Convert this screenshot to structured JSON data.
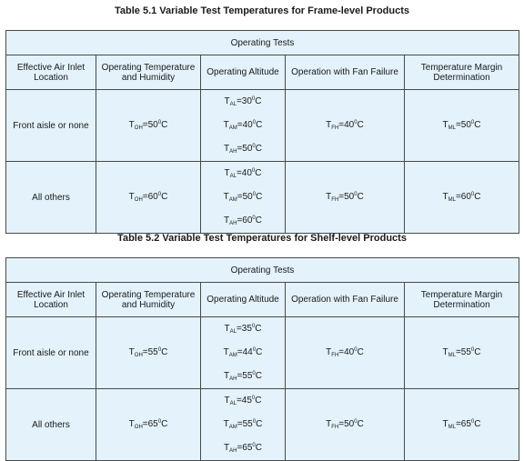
{
  "tables": [
    {
      "caption": "Table 5.1 Variable Test Temperatures for Frame-level Products",
      "group_header": "Operating Tests",
      "columns": [
        "Effective Air Inlet Location",
        "Operating Temperature and Humidity",
        "Operating Altitude",
        "Operation with Fan Failure",
        "Temperature Margin Determination"
      ],
      "rows": [
        {
          "location": "Front aisle or none",
          "oh": {
            "sym": "T",
            "sub": "OH",
            "val": "=50",
            "deg": "0",
            "unit": "C"
          },
          "altitude": [
            {
              "sym": "T",
              "sub": "AL",
              "val": "=30",
              "deg": "0",
              "unit": "C"
            },
            {
              "sym": "T",
              "sub": "AM",
              "val": "=40",
              "deg": "0",
              "unit": "C"
            },
            {
              "sym": "T",
              "sub": "AH",
              "val": "=50",
              "deg": "0",
              "unit": "C"
            }
          ],
          "fh": {
            "sym": "T",
            "sub": "FH",
            "val": "=40",
            "deg": "0",
            "unit": "C"
          },
          "ml": {
            "sym": "T",
            "sub": "ML",
            "val": "=50",
            "deg": "0",
            "unit": "C"
          }
        },
        {
          "location": "All others",
          "oh": {
            "sym": "T",
            "sub": "OH",
            "val": "=60",
            "deg": "0",
            "unit": "C"
          },
          "altitude": [
            {
              "sym": "T",
              "sub": "AL",
              "val": "=40",
              "deg": "0",
              "unit": "C"
            },
            {
              "sym": "T",
              "sub": "AM",
              "val": "=50",
              "deg": "0",
              "unit": "C"
            },
            {
              "sym": "T",
              "sub": "AH",
              "val": "=60",
              "deg": "0",
              "unit": "C"
            }
          ],
          "fh": {
            "sym": "T",
            "sub": "FH",
            "val": "=50",
            "deg": "0",
            "unit": "C"
          },
          "ml": {
            "sym": "T",
            "sub": "ML",
            "val": "=60",
            "deg": "0",
            "unit": "C"
          }
        }
      ]
    },
    {
      "caption": "Table 5.2 Variable Test Temperatures for Shelf-level Products",
      "group_header": "Operating Tests",
      "columns": [
        "Effective Air Inlet Location",
        "Operating Temperature and Humidity",
        "Operating Altitude",
        "Operation with Fan Failure",
        "Temperature Margin Determination"
      ],
      "rows": [
        {
          "location": "Front aisle or none",
          "oh": {
            "sym": "T",
            "sub": "OH",
            "val": "=55",
            "deg": "0",
            "unit": "C"
          },
          "altitude": [
            {
              "sym": "T",
              "sub": "AL",
              "val": "=35",
              "deg": "0",
              "unit": "C"
            },
            {
              "sym": "T",
              "sub": "AM",
              "val": "=44",
              "deg": "0",
              "unit": "C"
            },
            {
              "sym": "T",
              "sub": "AH",
              "val": "=55",
              "deg": "0",
              "unit": "C"
            }
          ],
          "fh": {
            "sym": "T",
            "sub": "FH",
            "val": "=40",
            "deg": "0",
            "unit": "C"
          },
          "ml": {
            "sym": "T",
            "sub": "ML",
            "val": "=55",
            "deg": "0",
            "unit": "C"
          }
        },
        {
          "location": "All others",
          "oh": {
            "sym": "T",
            "sub": "OH",
            "val": "=65",
            "deg": "0",
            "unit": "C"
          },
          "altitude": [
            {
              "sym": "T",
              "sub": "AL",
              "val": "=45",
              "deg": "0",
              "unit": "C"
            },
            {
              "sym": "T",
              "sub": "AM",
              "val": "=55",
              "deg": "0",
              "unit": "C"
            },
            {
              "sym": "T",
              "sub": "AH",
              "val": "=65",
              "deg": "0",
              "unit": "C"
            }
          ],
          "fh": {
            "sym": "T",
            "sub": "FH",
            "val": "=50",
            "deg": "0",
            "unit": "C"
          },
          "ml": {
            "sym": "T",
            "sub": "ML",
            "val": "=65",
            "deg": "0",
            "unit": "C"
          }
        }
      ]
    }
  ]
}
